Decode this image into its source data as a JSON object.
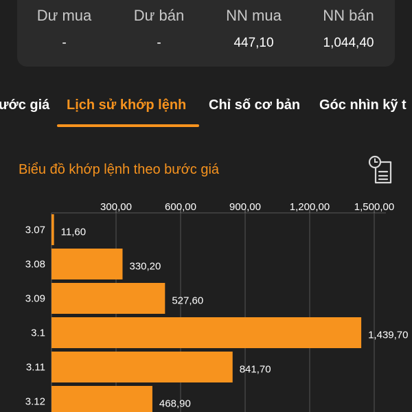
{
  "stats": {
    "items": [
      {
        "label": "Dư mua",
        "value": "-"
      },
      {
        "label": "Dư bán",
        "value": "-"
      },
      {
        "label": "NN mua",
        "value": "447,10"
      },
      {
        "label": "NN bán",
        "value": "1,044,40"
      }
    ]
  },
  "tabs": [
    {
      "label": "ước giá"
    },
    {
      "label": "Lịch sử khớp lệnh"
    },
    {
      "label": "Chỉ số cơ bản"
    },
    {
      "label": "Góc nhìn kỹ t"
    }
  ],
  "chart_section": {
    "title": "Biểu đồ khớp lệnh theo bước giá",
    "icon": "clock-report-icon"
  },
  "colors": {
    "accent": "#f7931e",
    "background": "#1f1f1f",
    "card": "#2b2b2b",
    "bar": "#f7931e"
  },
  "chart_data": {
    "type": "bar",
    "orientation": "horizontal",
    "categories": [
      "3.07",
      "3.08",
      "3.09",
      "3.1",
      "3.11",
      "3.12"
    ],
    "values": [
      11.6,
      330.2,
      527.6,
      1439.7,
      841.7,
      468.9
    ],
    "value_labels": [
      "11,60",
      "330,20",
      "527,60",
      "1,439,70",
      "841,70",
      "468,90"
    ],
    "x_ticks": [
      300,
      600,
      900,
      1200,
      1500
    ],
    "x_tick_labels": [
      "300,00",
      "600,00",
      "900,00",
      "1,200,00",
      "1,500,00"
    ],
    "xlim": [
      0,
      1500
    ],
    "axis_position": "top",
    "grid": true
  }
}
